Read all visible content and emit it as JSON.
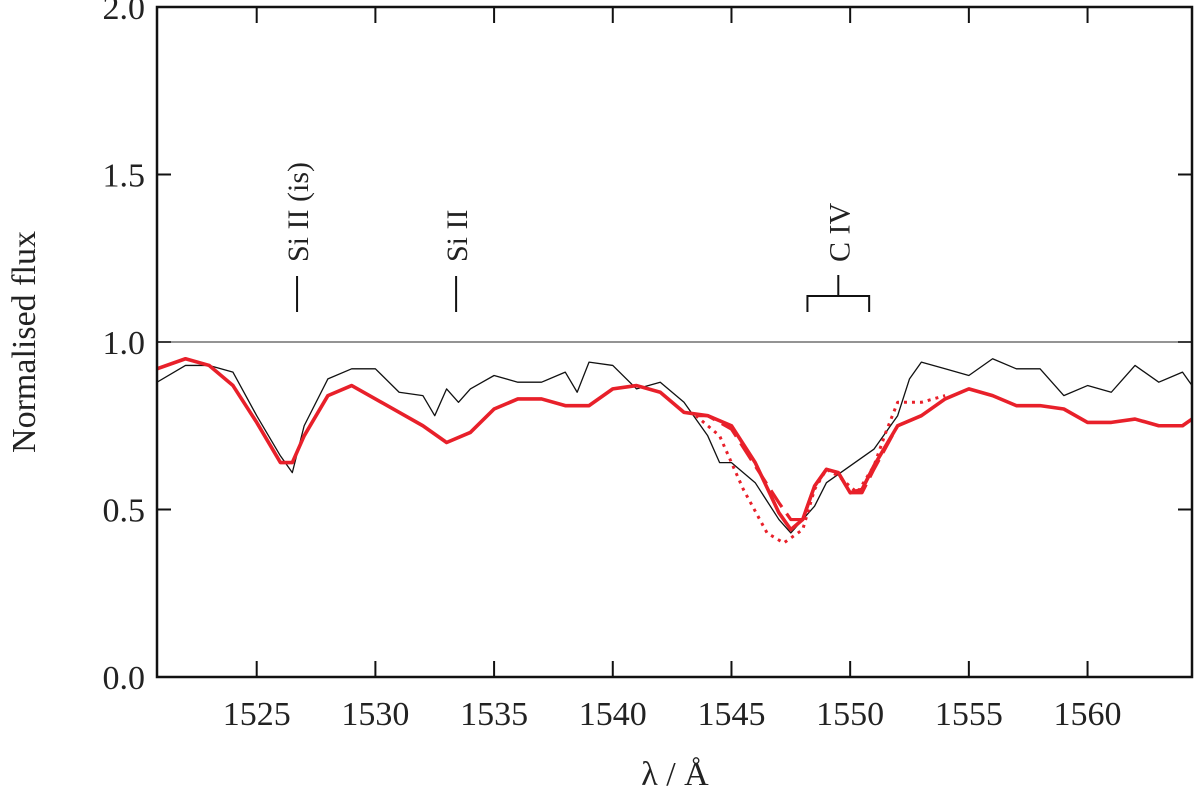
{
  "chart_data": {
    "type": "line",
    "x_label": "λ / Å",
    "y_label": "Normalised flux",
    "xlim": [
      1520.8,
      1564.4
    ],
    "ylim": [
      0,
      2
    ],
    "xticks": [
      1525,
      1530,
      1535,
      1540,
      1545,
      1550,
      1555,
      1560
    ],
    "yticks": [
      {
        "value": 0,
        "label": "0.0"
      },
      {
        "value": 0.5,
        "label": "0.5"
      },
      {
        "value": 1,
        "label": "1.0"
      },
      {
        "value": 1.5,
        "label": "1.5"
      },
      {
        "value": 2,
        "label": "2.0"
      }
    ],
    "grid": false,
    "hline": 1.0,
    "series": [
      {
        "color": "#111111",
        "style": "thin",
        "x": [
          1520.8,
          1522,
          1523,
          1524,
          1525,
          1526,
          1526.5,
          1527,
          1528,
          1529,
          1530,
          1531,
          1532,
          1532.5,
          1533,
          1533.5,
          1534,
          1535,
          1536,
          1537,
          1538,
          1538.5,
          1539,
          1540,
          1541,
          1542,
          1543,
          1544,
          1544.5,
          1545,
          1546,
          1547,
          1547.5,
          1548,
          1548.5,
          1549,
          1550,
          1551,
          1552,
          1552.5,
          1553,
          1554,
          1555,
          1556,
          1557,
          1558,
          1559,
          1560,
          1561,
          1562,
          1563,
          1564,
          1564.4
        ],
        "values": [
          0.88,
          0.93,
          0.93,
          0.91,
          0.78,
          0.66,
          0.61,
          0.75,
          0.89,
          0.92,
          0.92,
          0.85,
          0.84,
          0.78,
          0.86,
          0.82,
          0.86,
          0.9,
          0.88,
          0.88,
          0.91,
          0.85,
          0.94,
          0.93,
          0.86,
          0.88,
          0.82,
          0.72,
          0.64,
          0.64,
          0.58,
          0.47,
          0.43,
          0.47,
          0.51,
          0.58,
          0.63,
          0.68,
          0.78,
          0.89,
          0.94,
          0.92,
          0.9,
          0.95,
          0.92,
          0.92,
          0.84,
          0.87,
          0.85,
          0.93,
          0.88,
          0.91,
          0.87
        ]
      },
      {
        "color": "#e8202a",
        "style": "solid",
        "x": [
          1520.8,
          1522,
          1523,
          1524,
          1525,
          1526,
          1526.5,
          1527,
          1528,
          1529,
          1530,
          1531,
          1532,
          1533,
          1534,
          1535,
          1536,
          1537,
          1538,
          1539,
          1540,
          1541,
          1542,
          1543,
          1544,
          1545,
          1546,
          1547,
          1547.5,
          1548,
          1548.5,
          1549,
          1549.5,
          1550,
          1550.5,
          1551,
          1552,
          1553,
          1554,
          1555,
          1556,
          1557,
          1558,
          1559,
          1560,
          1561,
          1562,
          1563,
          1564,
          1564.4
        ],
        "values": [
          0.92,
          0.95,
          0.93,
          0.87,
          0.76,
          0.64,
          0.64,
          0.72,
          0.84,
          0.87,
          0.83,
          0.79,
          0.75,
          0.7,
          0.73,
          0.8,
          0.83,
          0.83,
          0.81,
          0.81,
          0.86,
          0.87,
          0.85,
          0.79,
          0.78,
          0.75,
          0.64,
          0.49,
          0.44,
          0.47,
          0.57,
          0.62,
          0.61,
          0.55,
          0.56,
          0.63,
          0.75,
          0.78,
          0.83,
          0.86,
          0.84,
          0.81,
          0.81,
          0.8,
          0.76,
          0.76,
          0.77,
          0.75,
          0.75,
          0.77
        ]
      },
      {
        "color": "#e8202a",
        "style": "dashed",
        "x": [
          1543.5,
          1544,
          1545,
          1546,
          1547,
          1547.5,
          1548,
          1548.5,
          1549,
          1549.5,
          1550,
          1550.5,
          1551,
          1552,
          1553
        ],
        "values": [
          0.78,
          0.78,
          0.74,
          0.63,
          0.52,
          0.47,
          0.47,
          0.57,
          0.62,
          0.61,
          0.55,
          0.55,
          0.62,
          0.75,
          0.78
        ]
      },
      {
        "color": "#e8202a",
        "style": "dotted",
        "x": [
          1543.5,
          1544.5,
          1545.5,
          1546.5,
          1547.2,
          1548,
          1548.5,
          1549,
          1549.5,
          1550.3,
          1551,
          1551.5,
          1552,
          1553,
          1554
        ],
        "values": [
          0.78,
          0.72,
          0.56,
          0.43,
          0.4,
          0.44,
          0.56,
          0.62,
          0.6,
          0.55,
          0.63,
          0.73,
          0.82,
          0.82,
          0.84
        ]
      }
    ],
    "annotations": [
      {
        "text": "Si II (is)",
        "x": 1526.7,
        "color": "#222222"
      },
      {
        "text": "Si II",
        "x": 1533.4,
        "color": "#222222"
      },
      {
        "text": "C IV",
        "x": 1549.5,
        "range": [
          1548.2,
          1550.8
        ],
        "color": "#2b4fa3"
      }
    ]
  }
}
